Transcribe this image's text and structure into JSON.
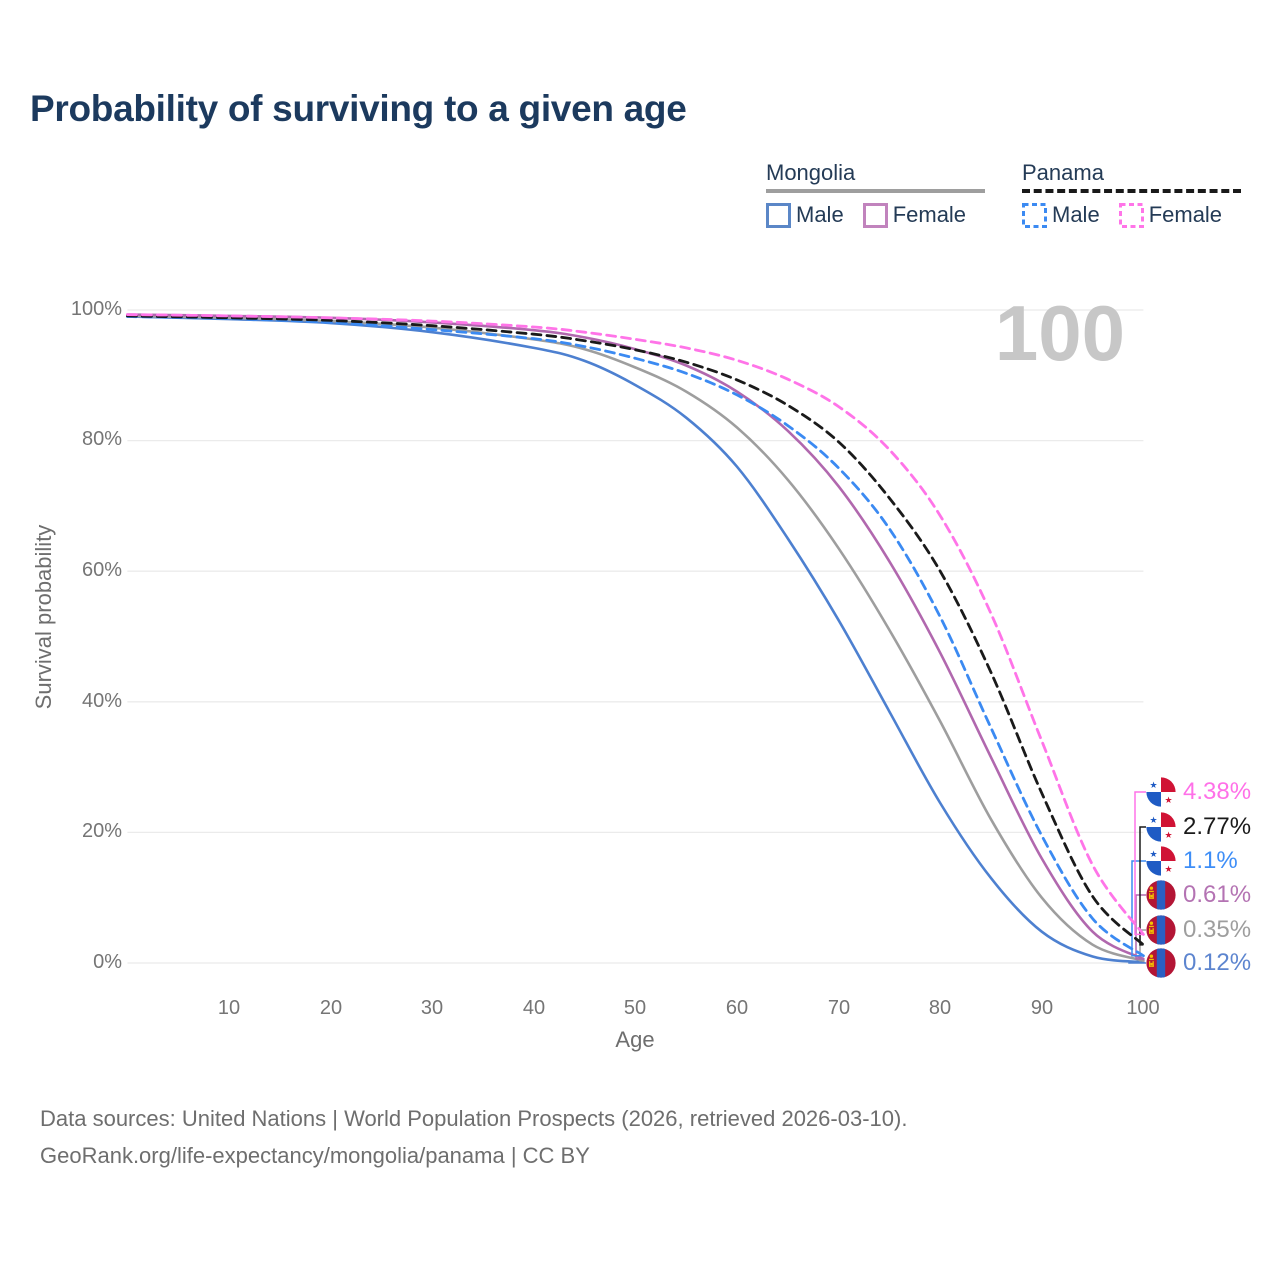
{
  "legend": {
    "groups": [
      {
        "country": "Mongolia",
        "line_style": "solid",
        "line_color": "#9e9e9e",
        "items": [
          {
            "label": "Male",
            "color": "#5b87c7"
          },
          {
            "label": "Female",
            "color": "#c183bd"
          }
        ]
      },
      {
        "country": "Panama",
        "line_style": "dashed",
        "line_color": "#1a1a1a",
        "items": [
          {
            "label": "Male",
            "color": "#3b8af2"
          },
          {
            "label": "Female",
            "color": "#ff74e8"
          }
        ]
      }
    ]
  },
  "chart_data": {
    "type": "line",
    "title": "Probability of surviving to a given age",
    "xlabel": "Age",
    "ylabel": "Survival probability",
    "xlim": [
      0,
      100
    ],
    "ylim": [
      0,
      100
    ],
    "grid": true,
    "legend_position": "top-right",
    "watermark": "100",
    "xticks": [
      "10",
      "20",
      "30",
      "40",
      "50",
      "60",
      "70",
      "80",
      "90",
      "100"
    ],
    "yticks": [
      "100%",
      "80%",
      "60%",
      "40%",
      "20%",
      "0%"
    ],
    "x": [
      0,
      10,
      20,
      30,
      40,
      45,
      50,
      55,
      60,
      65,
      70,
      75,
      80,
      85,
      90,
      95,
      100
    ],
    "series": [
      {
        "name": "Mongolia Male",
        "country": "Mongolia",
        "sex": "Male",
        "color": "#4d80d0",
        "dashed": false,
        "values": [
          99.0,
          98.6,
          98.0,
          96.6,
          94.2,
          92.2,
          88.5,
          83.5,
          76.0,
          65.0,
          52.5,
          38.5,
          24.5,
          13.0,
          4.8,
          1.0,
          0.12
        ],
        "end_label": "0.12%",
        "end_label_color": "#5d85cf",
        "label_row": 5,
        "flag": "mongolia"
      },
      {
        "name": "Mongolia Both sexes",
        "country": "Mongolia",
        "sex": "Both sexes",
        "color": "#9e9e9e",
        "dashed": false,
        "values": [
          99.1,
          98.8,
          98.3,
          97.3,
          95.5,
          94.0,
          91.2,
          87.5,
          82.0,
          74.0,
          63.5,
          51.0,
          37.0,
          22.0,
          10.0,
          2.8,
          0.35
        ],
        "end_label": "0.35%",
        "end_label_color": "#9e9e9e",
        "label_row": 4,
        "flag": "mongolia"
      },
      {
        "name": "Mongolia Female",
        "country": "Mongolia",
        "sex": "Female",
        "color": "#b168ae",
        "dashed": false,
        "values": [
          99.3,
          99.1,
          98.8,
          98.1,
          96.9,
          95.8,
          94.0,
          91.5,
          87.5,
          81.5,
          73.0,
          61.5,
          47.5,
          31.5,
          16.0,
          4.8,
          0.61
        ],
        "end_label": "0.61%",
        "end_label_color": "#b473b3",
        "label_row": 3,
        "flag": "mongolia"
      },
      {
        "name": "Panama Male",
        "country": "Panama",
        "sex": "Male",
        "color": "#3b8af2",
        "dashed": true,
        "values": [
          99.0,
          98.7,
          98.1,
          97.0,
          95.6,
          94.4,
          92.6,
          90.3,
          87.0,
          82.3,
          75.8,
          66.5,
          53.0,
          36.0,
          19.5,
          6.8,
          1.1
        ],
        "end_label": "1.1%",
        "end_label_color": "#3e8ef7",
        "label_row": 2,
        "flag": "panama"
      },
      {
        "name": "Panama Both sexes",
        "country": "Panama",
        "sex": "Both sexes",
        "color": "#1a1a1a",
        "dashed": true,
        "values": [
          99.1,
          98.8,
          98.4,
          97.6,
          96.3,
          95.3,
          93.9,
          92.0,
          89.3,
          85.4,
          79.8,
          71.2,
          60.0,
          44.5,
          26.0,
          10.2,
          2.77
        ],
        "end_label": "2.77%",
        "end_label_color": "#1a1a1a",
        "label_row": 1,
        "flag": "panama"
      },
      {
        "name": "Panama Female",
        "country": "Panama",
        "sex": "Female",
        "color": "#ff74e8",
        "dashed": true,
        "values": [
          99.3,
          99.1,
          98.8,
          98.3,
          97.4,
          96.6,
          95.5,
          94.2,
          92.3,
          89.4,
          85.2,
          78.6,
          68.5,
          53.5,
          34.0,
          15.0,
          4.38
        ],
        "end_label": "4.38%",
        "end_label_color": "#ff70e8",
        "label_row": 0,
        "flag": "panama"
      }
    ]
  },
  "footer": {
    "line1": "Data sources: United Nations | World Population Prospects (2026, retrieved 2026-03-10).",
    "line2": "GeoRank.org/life-expectancy/mongolia/panama | CC BY"
  }
}
